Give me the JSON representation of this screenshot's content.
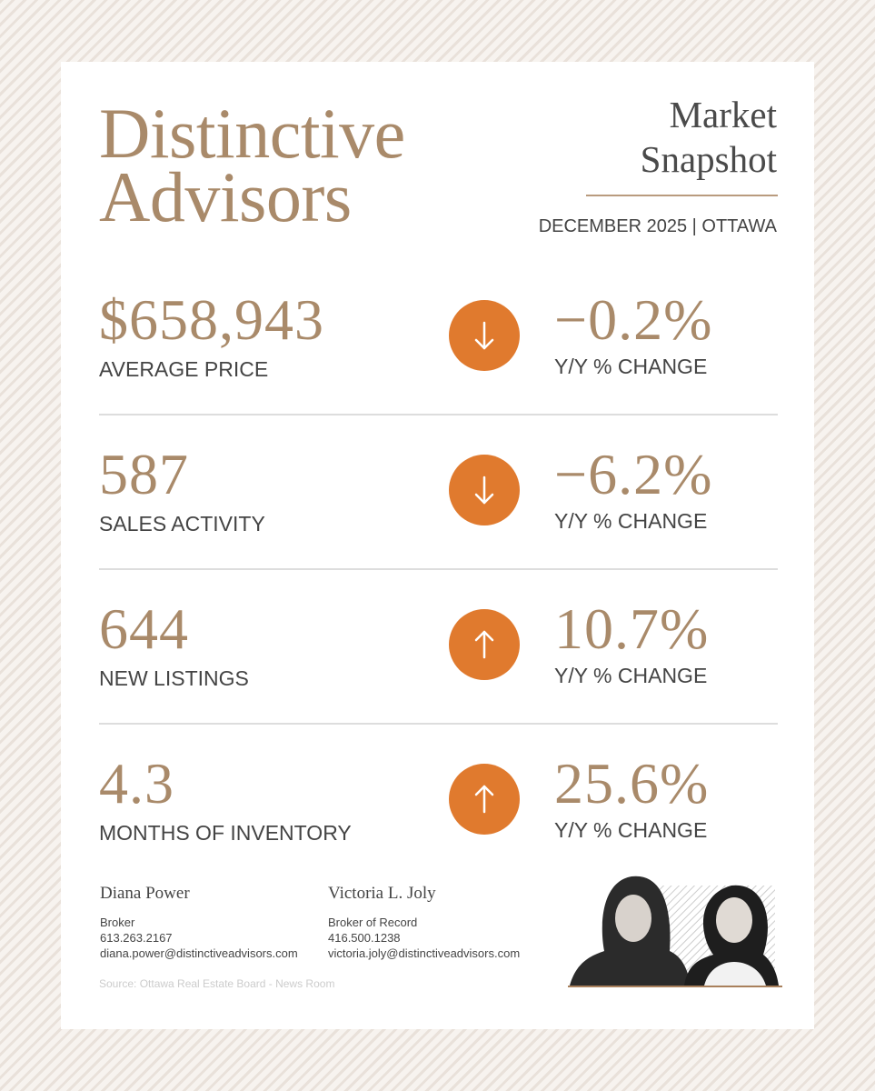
{
  "header": {
    "brand": [
      "Distinctive",
      "Advisors"
    ],
    "title": [
      "Market",
      "Snapshot"
    ],
    "subtitle": "DECEMBER 2025 | OTTAWA"
  },
  "stats": [
    {
      "value": "$658,943",
      "label": "AVERAGE PRICE",
      "change": "−0.2%",
      "change_label": "Y/Y % CHANGE",
      "trend": "down"
    },
    {
      "value": "587",
      "label": "SALES ACTIVITY",
      "change": "−6.2%",
      "change_label": "Y/Y % CHANGE",
      "trend": "down"
    },
    {
      "value": "644",
      "label": "NEW LISTINGS",
      "change": "10.7%",
      "change_label": "Y/Y % CHANGE",
      "trend": "up"
    },
    {
      "value": "4.3",
      "label": "MONTHS OF INVENTORY",
      "change": "25.6%",
      "change_label": "Y/Y % CHANGE",
      "trend": "up"
    }
  ],
  "contacts": [
    {
      "name": "Diana Power",
      "role": "Broker",
      "phone": "613.263.2167",
      "email": "diana.power@distinctiveadvisors.com"
    },
    {
      "name": "Victoria L. Joly",
      "role": "Broker of Record",
      "phone": "416.500.1238",
      "email": "victoria.joly@distinctiveadvisors.com"
    }
  ],
  "source": "Source: Ottawa Real Estate Board - News Room"
}
